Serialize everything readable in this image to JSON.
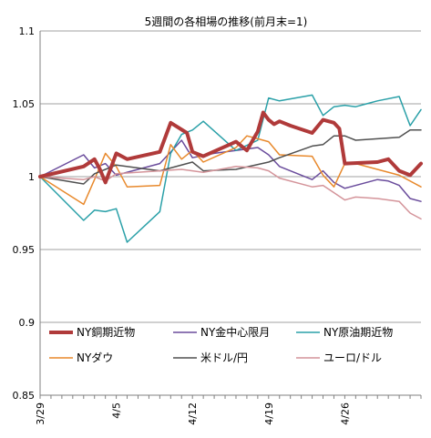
{
  "chart_data": {
    "type": "line",
    "title": "5週間の各相場の推移(前月末=1)",
    "xlabel": "",
    "ylabel": "",
    "ylim": [
      0.85,
      1.1
    ],
    "yticks": [
      "0.85",
      "0.9",
      "0.95",
      "1",
      "1.05",
      "1.1"
    ],
    "ytick_values": [
      0.85,
      0.9,
      0.95,
      1.0,
      1.05,
      1.1
    ],
    "x_tick_labels": [
      "3/29",
      "4/5",
      "4/12",
      "4/19",
      "4/26"
    ],
    "x_tick_days": [
      0,
      7,
      14,
      21,
      28
    ],
    "x_range": [
      0,
      35
    ],
    "grid": "horizontal",
    "legend_position": "bottom",
    "series": [
      {
        "name": "NY銅期近物",
        "color": "#b03a3a",
        "width": 4,
        "x": [
          0,
          4,
          5,
          5.5,
          6,
          7,
          8,
          11,
          12,
          13.5,
          14,
          15,
          18,
          19,
          20,
          20.5,
          21,
          21.5,
          22,
          23,
          25,
          26,
          27,
          27.5,
          28,
          31,
          32,
          33,
          34,
          35
        ],
        "values": [
          1.0,
          1.007,
          1.012,
          1.005,
          0.996,
          1.016,
          1.012,
          1.017,
          1.037,
          1.03,
          1.017,
          1.014,
          1.024,
          1.018,
          1.031,
          1.044,
          1.039,
          1.036,
          1.038,
          1.035,
          1.03,
          1.039,
          1.037,
          1.033,
          1.009,
          1.01,
          1.012,
          1.004,
          1.001,
          1.009
        ]
      },
      {
        "name": "NY金中心限月",
        "color": "#6a4c9c",
        "width": 1.5,
        "x": [
          0,
          4,
          5,
          6,
          7,
          11,
          13,
          14,
          16,
          18,
          20,
          21,
          22,
          25,
          26,
          27,
          28,
          31,
          32,
          33,
          34,
          35
        ],
        "values": [
          1.0,
          1.015,
          1.006,
          1.009,
          1.001,
          1.009,
          1.025,
          1.013,
          1.016,
          1.018,
          1.02,
          1.015,
          1.007,
          0.998,
          1.004,
          0.996,
          0.992,
          0.998,
          0.997,
          0.994,
          0.985,
          0.983
        ]
      },
      {
        "name": "NY原油期近物",
        "color": "#2aa0a8",
        "width": 1.5,
        "x": [
          0,
          4,
          5,
          6,
          7,
          8,
          11,
          12,
          13,
          14,
          15,
          18,
          20,
          21,
          22,
          25,
          26,
          27,
          28,
          29,
          30,
          31,
          33,
          34,
          35
        ],
        "values": [
          1.0,
          0.97,
          0.977,
          0.976,
          0.978,
          0.955,
          0.976,
          1.016,
          1.029,
          1.032,
          1.038,
          1.018,
          1.025,
          1.054,
          1.052,
          1.056,
          1.042,
          1.048,
          1.049,
          1.048,
          1.05,
          1.052,
          1.055,
          1.035,
          1.046
        ]
      },
      {
        "name": "NYダウ",
        "color": "#e8892c",
        "width": 1.5,
        "x": [
          0,
          4,
          5,
          6,
          7,
          8,
          11,
          12,
          13,
          14,
          15,
          18,
          19,
          20,
          21,
          22,
          25,
          26,
          27,
          28,
          29,
          31,
          33,
          35
        ],
        "values": [
          1.0,
          0.981,
          0.998,
          1.016,
          1.007,
          0.993,
          0.994,
          1.022,
          1.012,
          1.018,
          1.01,
          1.02,
          1.028,
          1.026,
          1.024,
          1.015,
          1.014,
          1.001,
          0.993,
          1.009,
          1.009,
          1.005,
          1.001,
          0.993
        ]
      },
      {
        "name": "米ドル/円",
        "color": "#505050",
        "width": 1.5,
        "x": [
          0,
          4,
          5,
          6,
          7,
          11,
          14,
          15,
          18,
          21,
          22,
          25,
          26,
          27,
          28,
          29,
          31,
          33,
          34,
          35
        ],
        "values": [
          1.0,
          0.995,
          1.002,
          1.005,
          1.008,
          1.004,
          1.01,
          1.004,
          1.005,
          1.01,
          1.013,
          1.021,
          1.022,
          1.028,
          1.028,
          1.025,
          1.026,
          1.027,
          1.032,
          1.032
        ]
      },
      {
        "name": "ユーロ/ドル",
        "color": "#d4949a",
        "width": 1.5,
        "x": [
          0,
          4,
          5,
          6,
          7,
          11,
          13,
          14,
          15,
          18,
          20,
          21,
          22,
          25,
          26,
          27,
          28,
          29,
          31,
          33,
          34,
          35
        ],
        "values": [
          1.0,
          0.998,
          1.0,
          0.997,
          1.002,
          1.004,
          1.005,
          1.004,
          1.003,
          1.007,
          1.006,
          1.004,
          0.999,
          0.993,
          0.994,
          0.989,
          0.984,
          0.986,
          0.985,
          0.983,
          0.975,
          0.971
        ]
      }
    ]
  }
}
